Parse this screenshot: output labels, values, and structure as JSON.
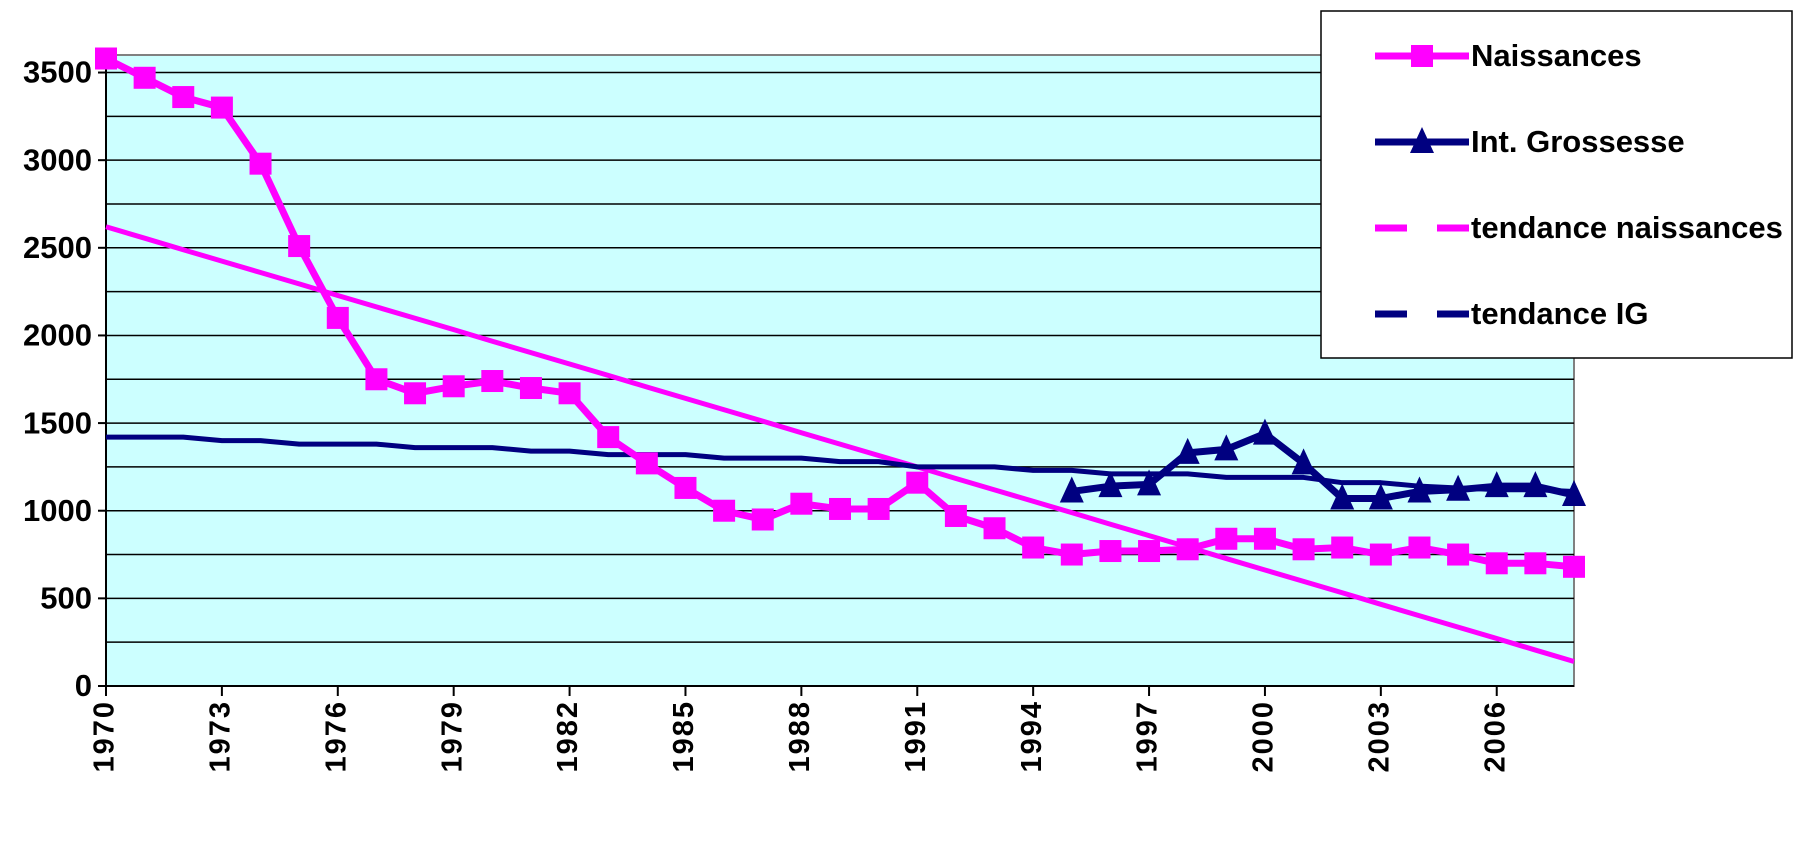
{
  "chart_data": {
    "type": "line",
    "x": [
      1970,
      1971,
      1972,
      1973,
      1974,
      1975,
      1976,
      1977,
      1978,
      1979,
      1980,
      1981,
      1982,
      1983,
      1984,
      1985,
      1986,
      1987,
      1988,
      1989,
      1990,
      1991,
      1992,
      1993,
      1994,
      1995,
      1996,
      1997,
      1998,
      1999,
      2000,
      2001,
      2002,
      2003,
      2004,
      2005,
      2006,
      2007,
      2008
    ],
    "xlim": [
      1970,
      2008
    ],
    "xticks": [
      1970,
      1973,
      1976,
      1979,
      1982,
      1985,
      1988,
      1991,
      1994,
      1997,
      2000,
      2003,
      2006
    ],
    "ylim": [
      0,
      3600
    ],
    "yticks": [
      0,
      500,
      1000,
      1500,
      2000,
      2500,
      3000,
      3500
    ],
    "y_minor_ticks": [
      250,
      750,
      1250,
      1750,
      2250,
      2750,
      3250
    ],
    "grid": true,
    "background": "#ccffff",
    "legend": "top-right",
    "series": [
      {
        "name": "Naissances",
        "color": "#ff00ff",
        "marker": "square",
        "values": [
          3580,
          3470,
          3360,
          3300,
          2980,
          2510,
          2100,
          1750,
          1670,
          1710,
          1740,
          1700,
          1670,
          1420,
          1270,
          1130,
          1000,
          950,
          1040,
          1010,
          1010,
          1160,
          970,
          900,
          790,
          750,
          770,
          770,
          780,
          840,
          840,
          780,
          790,
          750,
          790,
          750,
          700,
          700,
          680
        ]
      },
      {
        "name": "Int. Grossesse",
        "color": "#000080",
        "marker": "triangle",
        "values": [
          null,
          null,
          null,
          null,
          null,
          null,
          null,
          null,
          null,
          null,
          null,
          null,
          null,
          null,
          null,
          null,
          null,
          null,
          null,
          null,
          null,
          null,
          null,
          null,
          null,
          1110,
          1140,
          1150,
          1330,
          1350,
          1440,
          1270,
          1070,
          1070,
          1110,
          1120,
          1140,
          1140,
          1090
        ]
      },
      {
        "name": "tendance naissances",
        "color": "#ff00ff",
        "marker": "none",
        "values": [
          2620,
          2555,
          2489,
          2424,
          2359,
          2294,
          2228,
          2163,
          2098,
          2033,
          1967,
          1902,
          1837,
          1772,
          1706,
          1641,
          1576,
          1511,
          1445,
          1380,
          1315,
          1250,
          1184,
          1119,
          1054,
          989,
          923,
          858,
          793,
          727,
          662,
          597,
          532,
          466,
          401,
          336,
          271,
          205,
          140
        ]
      },
      {
        "name": "tendance IG",
        "color": "#000080",
        "marker": "none",
        "values": [
          1420,
          1420,
          1420,
          1400,
          1400,
          1380,
          1380,
          1380,
          1360,
          1360,
          1360,
          1340,
          1340,
          1320,
          1320,
          1320,
          1300,
          1300,
          1300,
          1280,
          1280,
          1250,
          1250,
          1250,
          1230,
          1230,
          1210,
          1210,
          1210,
          1190,
          1190,
          1190,
          1160,
          1160,
          1140,
          1130,
          1120,
          1120,
          1110
        ]
      }
    ]
  }
}
